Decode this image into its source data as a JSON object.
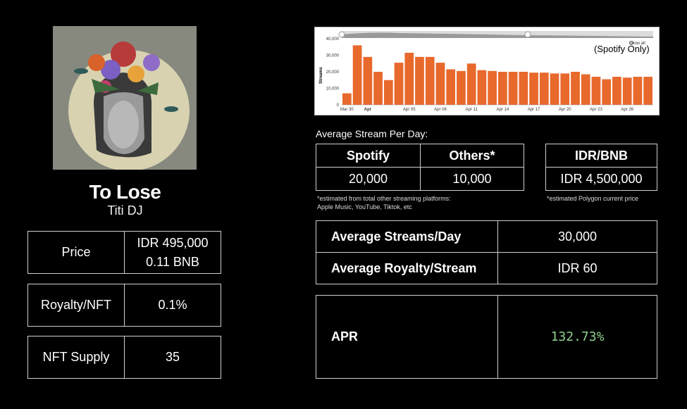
{
  "track": {
    "title": "To Lose",
    "artist": "Titi DJ"
  },
  "left_table": {
    "price_label": "Price",
    "price_idr": "IDR 495,000",
    "price_bnb": "0.11 BNB",
    "royalty_label": "Royalty/NFT",
    "royalty_value": "0.1%",
    "supply_label": "NFT Supply",
    "supply_value": "35"
  },
  "avg_stream_label": "Average Stream Per Day:",
  "stream_table": {
    "spotify_header": "Spotify",
    "others_header": "Others*",
    "spotify_value": "20,000",
    "others_value": "10,000",
    "note_line1": "*estimated from total other streaming platforms:",
    "note_line2": "Apple Music, YouTube, Tiktok, etc"
  },
  "rate_table": {
    "header": "IDR/BNB",
    "value": "IDR 4,500,000",
    "note": "*estimated Polygon current price"
  },
  "summary_table": {
    "avg_streams_label": "Average Streams/Day",
    "avg_streams_value": "30,000",
    "avg_royalty_label": "Average Royalty/Stream",
    "avg_royalty_value": "IDR 60"
  },
  "apr_table": {
    "label": "APR",
    "value": "132.73%"
  },
  "chart_data": {
    "type": "bar",
    "ylabel": "Streams",
    "annotation": "(Spotify Only)",
    "show_all_label": "Show all",
    "ylim": [
      0,
      40000
    ],
    "yticks": [
      "40,000",
      "30,000",
      "20,000",
      "10,000",
      "0"
    ],
    "xticks": [
      "Mar 30",
      "Apr",
      "Apr 05",
      "Apr 08",
      "Apr 11",
      "Apr 14",
      "Apr 17",
      "Apr 20",
      "Apr 23",
      "Apr 26"
    ],
    "values": [
      7000,
      36000,
      29000,
      20000,
      15000,
      25500,
      31500,
      29000,
      29000,
      25500,
      21500,
      20500,
      25000,
      21000,
      20500,
      20000,
      20000,
      20000,
      19500,
      19500,
      19000,
      19000,
      20000,
      18500,
      17000,
      15500,
      17000,
      16500,
      17000,
      17000
    ],
    "color": "#e8692c"
  },
  "colors": {
    "background": "#000000",
    "border": "#cfcfcf",
    "apr_green": "#8fd18f",
    "bar": "#e8692c"
  }
}
